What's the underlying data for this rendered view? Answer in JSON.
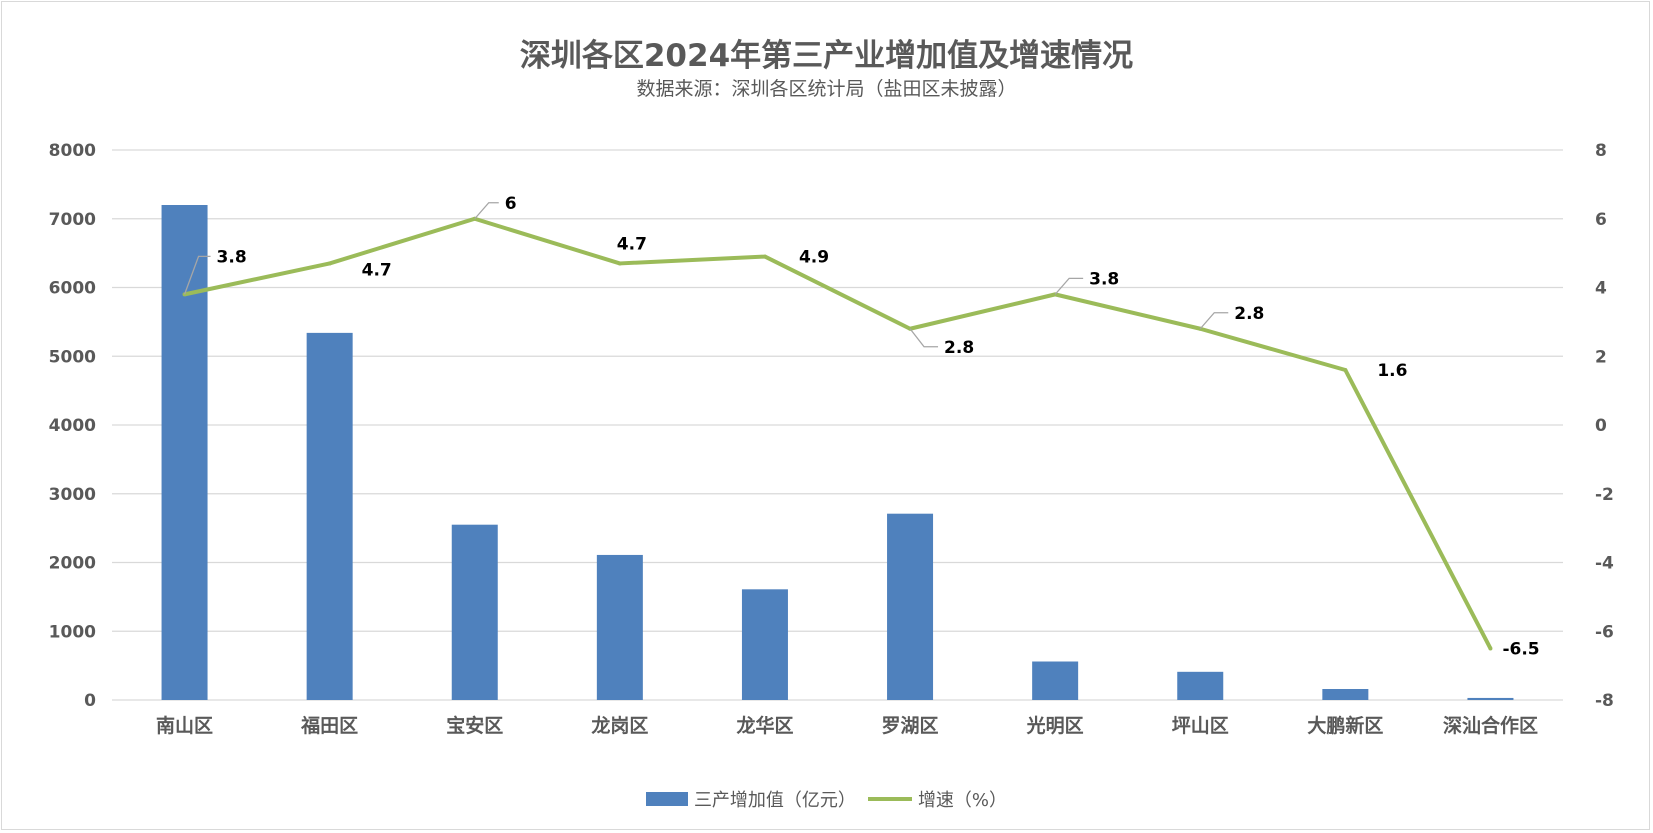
{
  "chart_data": {
    "type": "bar",
    "title": "深圳各区2024年第三产业增加值及增速情况",
    "subtitle": "数据来源：深圳各区统计局（盐田区未披露）",
    "categories": [
      "南山区",
      "福田区",
      "宝安区",
      "龙岗区",
      "龙华区",
      "罗湖区",
      "光明区",
      "坪山区",
      "大鹏新区",
      "深汕合作区"
    ],
    "series": [
      {
        "name": "三产增加值（亿元）",
        "type": "bar",
        "axis": "left",
        "color": "#4f81bd",
        "values": [
          7200,
          5340,
          2550,
          2110,
          1610,
          2710,
          560,
          410,
          160,
          30
        ]
      },
      {
        "name": "增速（%）",
        "type": "line",
        "axis": "right",
        "color": "#9bbb59",
        "values": [
          3.8,
          4.7,
          6,
          4.7,
          4.9,
          2.8,
          3.8,
          2.8,
          1.6,
          -6.5
        ],
        "labels": [
          "3.8",
          "4.7",
          "6",
          "4.7",
          "4.9",
          "2.8",
          "3.8",
          "2.8",
          "1.6",
          "-6.5"
        ]
      }
    ],
    "y_left": {
      "min": 0,
      "max": 8000,
      "ticks": [
        "0",
        "1000",
        "2000",
        "3000",
        "4000",
        "5000",
        "6000",
        "7000",
        "8000"
      ]
    },
    "y_right": {
      "min": -8,
      "max": 8,
      "ticks": [
        "-8",
        "-6",
        "-4",
        "-2",
        "0",
        "2",
        "4",
        "6",
        "8"
      ]
    },
    "grid": true,
    "legend_position": "bottom"
  }
}
